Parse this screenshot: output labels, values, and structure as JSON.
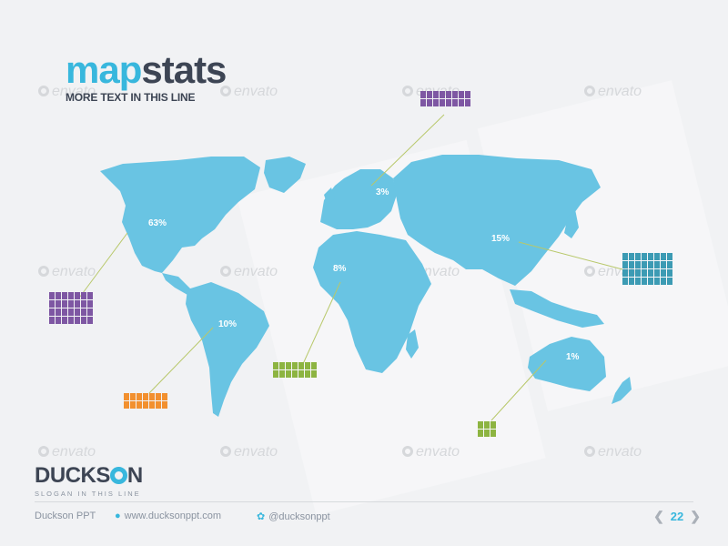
{
  "title": {
    "part1": "map",
    "part2": "stats"
  },
  "subtitle": "MORE TEXT IN THIS LINE",
  "watermark_text": "envato",
  "colors": {
    "map": "#69c4e3",
    "accent": "#38b7dd",
    "dark": "#3d4554",
    "line": "#b8c86a"
  },
  "regions": [
    {
      "name": "north-america",
      "percent": "63%",
      "color": "#7e57a3",
      "people_rows": 4,
      "people_cols": 7
    },
    {
      "name": "south-america",
      "percent": "10%",
      "color": "#f2902f",
      "people_rows": 2,
      "people_cols": 7
    },
    {
      "name": "europe",
      "percent": "3%",
      "color": "#7e57a3",
      "people_rows": 2,
      "people_cols": 8
    },
    {
      "name": "africa",
      "percent": "8%",
      "color": "#8db441",
      "people_rows": 2,
      "people_cols": 7
    },
    {
      "name": "asia",
      "percent": "15%",
      "color": "#3c9bb4",
      "people_rows": 4,
      "people_cols": 8
    },
    {
      "name": "australia",
      "percent": "1%",
      "color": "#8db441",
      "people_rows": 2,
      "people_cols": 3
    }
  ],
  "brand": {
    "logo_part1": "DUCKS",
    "logo_part2": "N",
    "slogan": "SLOGAN IN THIS LINE"
  },
  "footer": {
    "company": "Duckson PPT",
    "website": "www.ducksonppt.com",
    "twitter": "@ducksonppt",
    "page": "22"
  }
}
